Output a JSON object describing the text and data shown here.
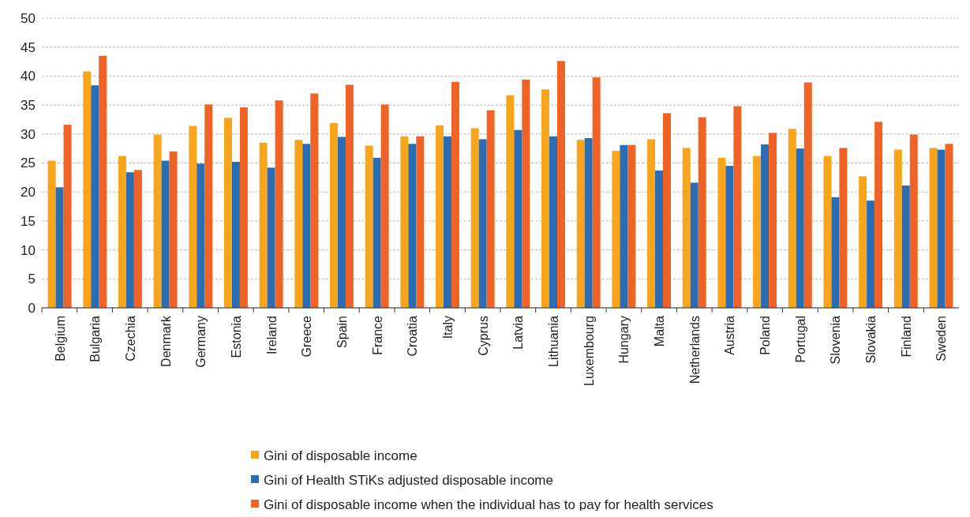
{
  "chart_data": {
    "type": "bar",
    "categories": [
      "Belgium",
      "Bulgaria",
      "Czechia",
      "Denmark",
      "Germany",
      "Estonia",
      "Ireland",
      "Greece",
      "Spain",
      "France",
      "Croatia",
      "Italy",
      "Cyprus",
      "Latvia",
      "Lithuania",
      "Luxembourg",
      "Hungary",
      "Malta",
      "Netherlands",
      "Austria",
      "Poland",
      "Portugal",
      "Slovenia",
      "Slovakia",
      "Finland",
      "Sweden"
    ],
    "series": [
      {
        "name": "Gini of disposable income",
        "color": "#f9a51b",
        "values": [
          25.4,
          40.8,
          26.2,
          29.9,
          31.4,
          32.8,
          28.5,
          29.0,
          31.9,
          28.0,
          29.6,
          31.5,
          31.0,
          36.7,
          37.7,
          29.0,
          27.1,
          29.1,
          27.6,
          25.9,
          26.2,
          30.9,
          26.2,
          22.7,
          27.3,
          27.6
        ]
      },
      {
        "name": "Gini of Health STiKs adjusted disposable income",
        "color": "#2a6db3",
        "values": [
          20.8,
          38.4,
          23.4,
          25.4,
          24.9,
          25.2,
          24.2,
          28.3,
          29.5,
          25.9,
          28.3,
          29.6,
          29.1,
          30.7,
          29.6,
          29.3,
          28.1,
          23.7,
          21.6,
          24.5,
          28.2,
          27.5,
          19.1,
          18.5,
          21.1,
          27.3
        ]
      },
      {
        "name": "Gini of disposable income when the individual has to pay for health services",
        "color": "#ef6326",
        "values": [
          31.6,
          43.5,
          23.8,
          27.0,
          35.1,
          34.6,
          35.8,
          37.0,
          38.5,
          35.1,
          29.6,
          39.0,
          34.1,
          39.4,
          42.6,
          39.8,
          28.1,
          33.6,
          32.9,
          34.8,
          30.2,
          38.9,
          27.6,
          32.1,
          29.9,
          28.3
        ]
      }
    ],
    "ylim": [
      0,
      50
    ],
    "yticks": [
      0,
      5,
      10,
      15,
      20,
      25,
      30,
      35,
      40,
      45,
      50
    ],
    "grid": "y",
    "legend": "bottom"
  }
}
